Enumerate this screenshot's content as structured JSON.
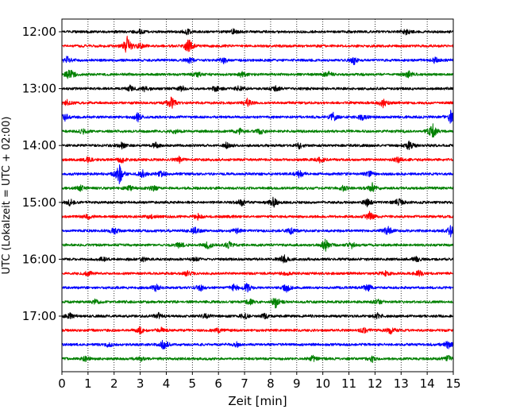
{
  "chart_data": {
    "type": "line",
    "title": "",
    "xlabel": "Zeit  [min]",
    "ylabel": "UTC (Lokalzeit = UTC + 02:00)",
    "xlim": [
      0,
      15
    ],
    "x_ticks": [
      "0",
      "1",
      "2",
      "3",
      "4",
      "5",
      "6",
      "7",
      "8",
      "9",
      "10",
      "11",
      "12",
      "13",
      "14",
      "15"
    ],
    "y_tick_labels": [
      "12:00",
      "13:00",
      "14:00",
      "15:00",
      "16:00",
      "17:00"
    ],
    "y_tick_rows": [
      0,
      4,
      8,
      12,
      16,
      20
    ],
    "grid_x": true,
    "legend": "none",
    "color_cycle": [
      "#000000",
      "#ff0000",
      "#0000ff",
      "#008000"
    ],
    "traces": [
      {
        "start": "12:00",
        "color": "#000000",
        "events": [
          [
            3.0,
            0.4
          ],
          [
            4.8,
            0.5
          ],
          [
            6.6,
            0.5
          ],
          [
            13.2,
            0.5
          ]
        ]
      },
      {
        "start": "12:15",
        "color": "#ff0000",
        "events": [
          [
            2.5,
            1.6
          ],
          [
            3.0,
            0.5
          ],
          [
            4.9,
            0.9
          ],
          [
            4.8,
            0.6
          ]
        ]
      },
      {
        "start": "12:30",
        "color": "#0000ff",
        "events": [
          [
            0.2,
            0.6
          ],
          [
            4.9,
            0.5
          ],
          [
            6.2,
            0.5
          ],
          [
            11.2,
            0.7
          ],
          [
            14.3,
            0.6
          ]
        ]
      },
      {
        "start": "12:45",
        "color": "#008000",
        "events": [
          [
            0.3,
            1.1
          ],
          [
            5.2,
            0.4
          ],
          [
            6.9,
            0.5
          ],
          [
            10.2,
            0.6
          ],
          [
            13.3,
            0.6
          ]
        ]
      },
      {
        "start": "13:00",
        "color": "#000000",
        "events": [
          [
            2.6,
            0.5
          ],
          [
            3.2,
            0.5
          ],
          [
            4.6,
            0.5
          ],
          [
            5.9,
            0.5
          ],
          [
            6.8,
            0.5
          ],
          [
            8.2,
            0.5
          ]
        ]
      },
      {
        "start": "13:15",
        "color": "#ff0000",
        "events": [
          [
            0.2,
            0.5
          ],
          [
            4.2,
            1.0
          ],
          [
            7.1,
            0.7
          ],
          [
            12.3,
            0.9
          ]
        ]
      },
      {
        "start": "13:30",
        "color": "#0000ff",
        "events": [
          [
            0.1,
            0.7
          ],
          [
            2.9,
            0.8
          ],
          [
            10.4,
            0.7
          ],
          [
            11.5,
            0.5
          ],
          [
            14.9,
            1.1
          ]
        ]
      },
      {
        "start": "13:45",
        "color": "#008000",
        "events": [
          [
            0.8,
            0.4
          ],
          [
            4.3,
            0.4
          ],
          [
            6.8,
            0.5
          ],
          [
            7.6,
            0.5
          ],
          [
            14.2,
            1.4
          ]
        ]
      },
      {
        "start": "14:00",
        "color": "#000000",
        "events": [
          [
            2.3,
            0.5
          ],
          [
            3.6,
            0.5
          ],
          [
            6.3,
            0.5
          ],
          [
            9.1,
            0.5
          ],
          [
            13.3,
            0.8
          ]
        ]
      },
      {
        "start": "14:15",
        "color": "#ff0000",
        "events": [
          [
            1.0,
            0.5
          ],
          [
            2.3,
            0.6
          ],
          [
            4.5,
            0.5
          ],
          [
            9.9,
            0.5
          ],
          [
            12.9,
            0.5
          ]
        ]
      },
      {
        "start": "14:30",
        "color": "#0000ff",
        "events": [
          [
            2.2,
            2.0
          ],
          [
            3.1,
            0.7
          ],
          [
            3.8,
            0.6
          ],
          [
            9.1,
            0.7
          ],
          [
            11.8,
            0.5
          ]
        ]
      },
      {
        "start": "14:45",
        "color": "#008000",
        "events": [
          [
            0.7,
            0.5
          ],
          [
            2.6,
            0.5
          ],
          [
            3.5,
            0.6
          ],
          [
            10.8,
            0.5
          ],
          [
            11.9,
            0.8
          ]
        ]
      },
      {
        "start": "15:00",
        "color": "#000000",
        "events": [
          [
            0.3,
            0.6
          ],
          [
            6.9,
            0.6
          ],
          [
            8.1,
            0.9
          ],
          [
            11.7,
            0.6
          ],
          [
            12.9,
            0.7
          ]
        ]
      },
      {
        "start": "15:15",
        "color": "#ff0000",
        "events": [
          [
            1.0,
            0.5
          ],
          [
            3.4,
            0.4
          ],
          [
            5.2,
            0.5
          ],
          [
            11.8,
            0.8
          ]
        ]
      },
      {
        "start": "15:30",
        "color": "#0000ff",
        "events": [
          [
            2.0,
            0.6
          ],
          [
            5.1,
            0.6
          ],
          [
            6.7,
            0.5
          ],
          [
            8.8,
            0.6
          ],
          [
            12.5,
            0.8
          ],
          [
            14.9,
            0.9
          ]
        ]
      },
      {
        "start": "15:45",
        "color": "#008000",
        "events": [
          [
            4.5,
            0.5
          ],
          [
            5.6,
            0.7
          ],
          [
            6.4,
            0.6
          ],
          [
            10.1,
            1.0
          ],
          [
            11.1,
            0.6
          ]
        ]
      },
      {
        "start": "16:00",
        "color": "#000000",
        "events": [
          [
            1.6,
            0.5
          ],
          [
            3.1,
            0.4
          ],
          [
            5.1,
            0.4
          ],
          [
            8.5,
            0.8
          ],
          [
            13.6,
            0.5
          ]
        ]
      },
      {
        "start": "16:15",
        "color": "#ff0000",
        "events": [
          [
            1.0,
            0.5
          ],
          [
            4.8,
            0.5
          ],
          [
            8.6,
            0.4
          ],
          [
            12.4,
            0.5
          ],
          [
            13.7,
            0.5
          ]
        ]
      },
      {
        "start": "16:30",
        "color": "#0000ff",
        "events": [
          [
            3.6,
            0.6
          ],
          [
            5.3,
            0.6
          ],
          [
            6.6,
            0.7
          ],
          [
            7.1,
            0.7
          ],
          [
            8.6,
            0.8
          ],
          [
            11.7,
            0.8
          ]
        ]
      },
      {
        "start": "16:45",
        "color": "#008000",
        "events": [
          [
            1.3,
            0.5
          ],
          [
            7.2,
            0.5
          ],
          [
            8.2,
            1.1
          ],
          [
            12.1,
            0.5
          ]
        ]
      },
      {
        "start": "17:00",
        "color": "#000000",
        "events": [
          [
            0.3,
            0.5
          ],
          [
            3.7,
            0.5
          ],
          [
            5.5,
            0.5
          ],
          [
            7.0,
            0.6
          ],
          [
            7.8,
            0.5
          ],
          [
            12.1,
            0.5
          ]
        ]
      },
      {
        "start": "17:15",
        "color": "#ff0000",
        "events": [
          [
            3.0,
            0.6
          ],
          [
            3.8,
            0.5
          ],
          [
            6.0,
            0.4
          ],
          [
            11.6,
            0.5
          ],
          [
            12.6,
            0.6
          ]
        ]
      },
      {
        "start": "17:30",
        "color": "#0000ff",
        "events": [
          [
            1.8,
            0.4
          ],
          [
            3.9,
            0.9
          ],
          [
            6.7,
            0.4
          ],
          [
            14.8,
            0.7
          ]
        ]
      },
      {
        "start": "17:45",
        "color": "#008000",
        "events": [
          [
            0.9,
            0.4
          ],
          [
            3.0,
            0.4
          ],
          [
            9.6,
            0.6
          ],
          [
            11.9,
            0.5
          ],
          [
            14.8,
            0.5
          ]
        ]
      }
    ]
  }
}
